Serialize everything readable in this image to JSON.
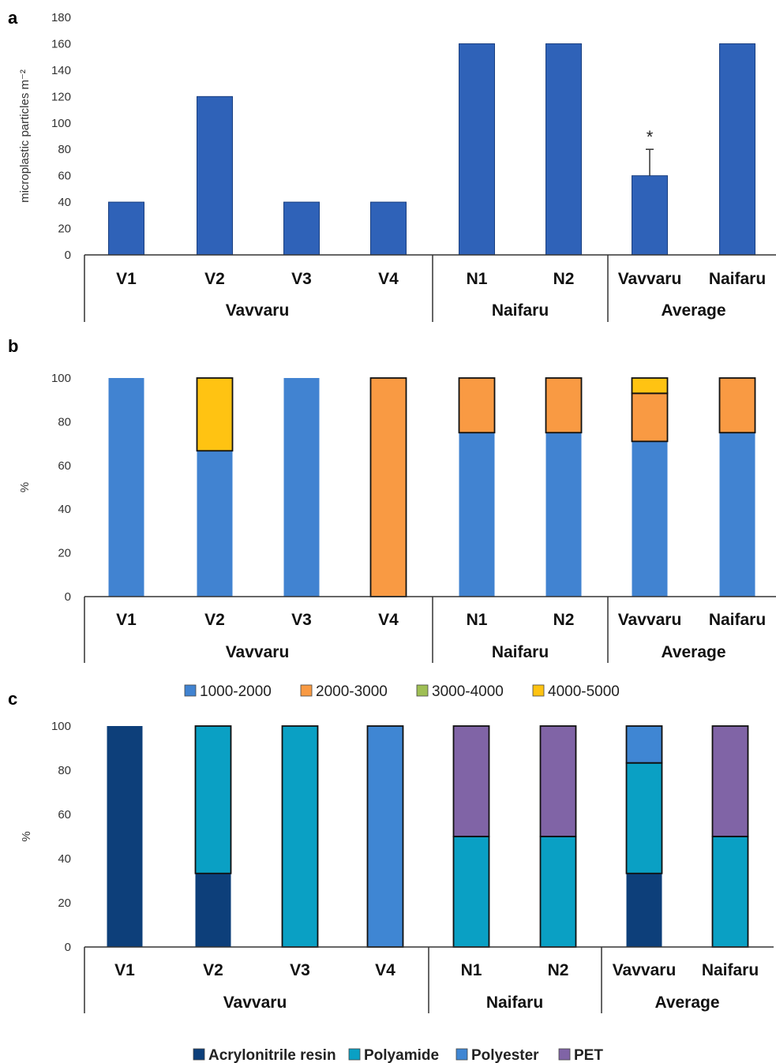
{
  "chart_data": [
    {
      "panel_label": "a",
      "type": "bar",
      "ylabel": "microplastic particles m⁻²",
      "ylim": [
        0,
        180
      ],
      "yticks": [
        0,
        20,
        40,
        60,
        80,
        100,
        120,
        140,
        160,
        180
      ],
      "categories": [
        "V1",
        "V2",
        "V3",
        "V4",
        "N1",
        "N2",
        "Vavvaru",
        "Naifaru"
      ],
      "groups": [
        {
          "label": "Vavvaru",
          "count": 4
        },
        {
          "label": "Naifaru",
          "count": 2
        },
        {
          "label": "Average",
          "count": 2
        }
      ],
      "values": [
        40,
        120,
        40,
        40,
        160,
        160,
        60,
        160
      ],
      "error_bars": [
        null,
        null,
        null,
        null,
        null,
        null,
        20,
        null
      ],
      "annotations": [
        {
          "category": "Vavvaru",
          "text": "*"
        }
      ],
      "bar_color": "#2f62b8"
    },
    {
      "panel_label": "b",
      "type": "bar",
      "stacked": true,
      "ylabel": "%",
      "ylim": [
        0,
        100
      ],
      "yticks": [
        0,
        20,
        40,
        60,
        80,
        100
      ],
      "categories": [
        "V1",
        "V2",
        "V3",
        "V4",
        "N1",
        "N2",
        "Vavvaru",
        "Naifaru"
      ],
      "groups": [
        {
          "label": "Vavvaru",
          "count": 4
        },
        {
          "label": "Naifaru",
          "count": 2
        },
        {
          "label": "Average",
          "count": 2
        }
      ],
      "series": [
        {
          "name": "1000-2000",
          "color": "#4183d1",
          "values": [
            100,
            66.7,
            100,
            0,
            75,
            75,
            71,
            75
          ]
        },
        {
          "name": "2000-3000",
          "color": "#f99a43",
          "values": [
            0,
            0,
            0,
            100,
            25,
            25,
            22,
            25
          ]
        },
        {
          "name": "3000-4000",
          "color": "#9fbf54",
          "values": [
            0,
            0,
            0,
            0,
            0,
            0,
            0,
            0
          ]
        },
        {
          "name": "4000-5000",
          "color": "#ffc312",
          "values": [
            0,
            33.3,
            0,
            0,
            0,
            0,
            7,
            0
          ]
        }
      ],
      "legend_position": "bottom"
    },
    {
      "panel_label": "c",
      "type": "bar",
      "stacked": true,
      "ylabel": "%",
      "ylim": [
        0,
        100
      ],
      "yticks": [
        0,
        20,
        40,
        60,
        80,
        100
      ],
      "categories": [
        "V1",
        "V2",
        "V3",
        "V4",
        "N1",
        "N2",
        "Vavvaru",
        "Naifaru"
      ],
      "groups": [
        {
          "label": "Vavvaru",
          "count": 4
        },
        {
          "label": "Naifaru",
          "count": 2
        },
        {
          "label": "Average",
          "count": 2
        }
      ],
      "series": [
        {
          "name": "Acrylonitrile resin",
          "color": "#0d3f7a",
          "values": [
            100,
            33.3,
            0,
            0,
            0,
            0,
            33.3,
            0
          ]
        },
        {
          "name": "Polyamide",
          "color": "#0aa0c4",
          "values": [
            0,
            66.7,
            100,
            0,
            50,
            50,
            50,
            50
          ]
        },
        {
          "name": "Polyester",
          "color": "#3f86d3",
          "values": [
            0,
            0,
            0,
            100,
            0,
            0,
            16.7,
            0
          ]
        },
        {
          "name": "PET",
          "color": "#8064a6",
          "values": [
            0,
            0,
            0,
            0,
            50,
            50,
            0,
            50
          ]
        }
      ],
      "legend_position": "bottom"
    }
  ]
}
